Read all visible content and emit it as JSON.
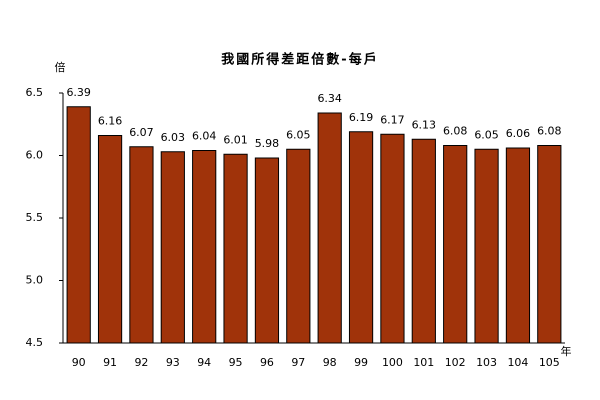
{
  "chart_data": {
    "type": "bar",
    "title": "我國所得差距倍數-每戶",
    "y_unit": "倍",
    "x_unit": "年",
    "categories": [
      "90",
      "91",
      "92",
      "93",
      "94",
      "95",
      "96",
      "97",
      "98",
      "99",
      "100",
      "101",
      "102",
      "103",
      "104",
      "105"
    ],
    "values": [
      6.39,
      6.16,
      6.07,
      6.03,
      6.04,
      6.01,
      5.98,
      6.05,
      6.34,
      6.19,
      6.17,
      6.13,
      6.08,
      6.05,
      6.06,
      6.08
    ],
    "color": "#a0330a",
    "ylim": [
      4.5,
      6.5
    ],
    "yticks": [
      4.5,
      {
        "value": 5,
        "label": "5.0"
      },
      5.5,
      {
        "value": 6,
        "label": "6.0"
      },
      6.5
    ],
    "grid": false
  }
}
